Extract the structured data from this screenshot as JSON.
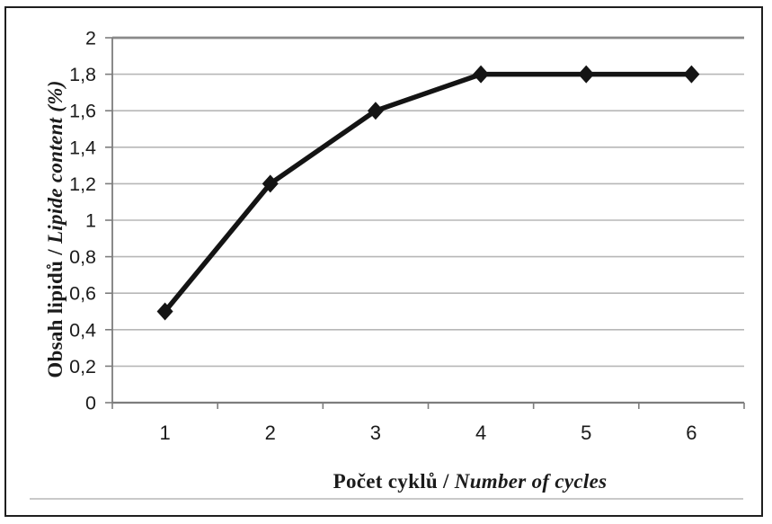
{
  "figure": {
    "background": "#ffffff",
    "frame_border_color": "#1f1f1f"
  },
  "chart_data": {
    "type": "line",
    "title": "",
    "categories": [
      "1",
      "2",
      "3",
      "4",
      "5",
      "6"
    ],
    "series": [
      {
        "name": "lipide-content",
        "values": [
          0.5,
          1.2,
          1.6,
          1.8,
          1.8,
          1.8
        ],
        "color": "#141414",
        "marker": "diamond"
      }
    ],
    "xlabel": "Počet cyklů / Number of cycles",
    "ylabel": "Obsah lipidů / Lipide content (%)",
    "ylim": [
      0,
      2
    ],
    "yticks": [
      {
        "value": 0,
        "label": "0"
      },
      {
        "value": 0.2,
        "label": "0,2"
      },
      {
        "value": 0.4,
        "label": "0,4"
      },
      {
        "value": 0.6,
        "label": "0,6"
      },
      {
        "value": 0.8,
        "label": "0,8"
      },
      {
        "value": 1,
        "label": "1"
      },
      {
        "value": 1.2,
        "label": "1,2"
      },
      {
        "value": 1.4,
        "label": "1,4"
      },
      {
        "value": 1.6,
        "label": "1,6"
      },
      {
        "value": 1.8,
        "label": "1,8"
      },
      {
        "value": 2,
        "label": "2"
      }
    ],
    "grid": "horizontal-only",
    "legend_position": "none",
    "gridline_color": "#b7b7b7",
    "top_gridline_color": "#8a8a8a",
    "axis_color": "#7d7d7d",
    "tick_label_color": "#1b1b1b"
  },
  "axis_titles": {
    "x": {
      "primary": "Počet cyklů",
      "separator": " / ",
      "secondary": "Number of cycles"
    },
    "y": {
      "primary": "Obsah lipidů",
      "separator": " / ",
      "secondary": "Lipide content (%)"
    }
  }
}
